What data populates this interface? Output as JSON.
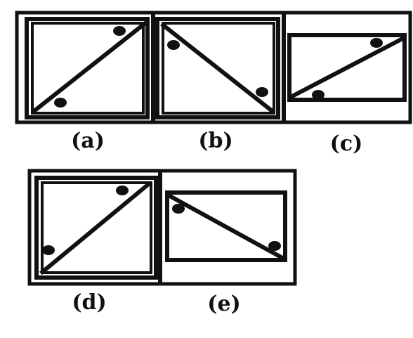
{
  "figures": [
    {
      "id": "a",
      "label": "(a)"
    },
    {
      "id": "b",
      "label": "(b)"
    },
    {
      "id": "c",
      "label": "(c)"
    },
    {
      "id": "d",
      "label": "(d)"
    },
    {
      "id": "e",
      "label": "(e)"
    }
  ],
  "colors": {
    "ink": "#111111",
    "background": "#ffffff"
  }
}
